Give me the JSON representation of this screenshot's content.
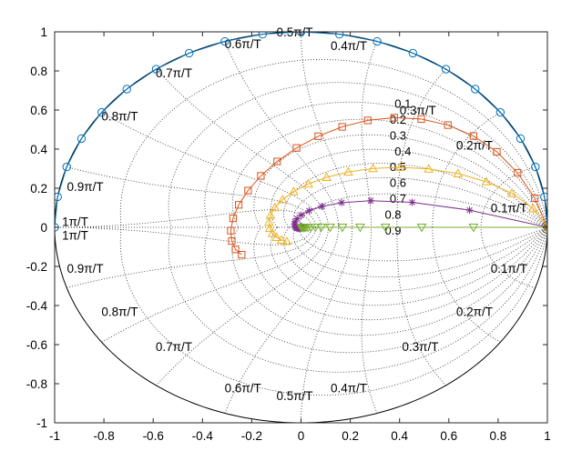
{
  "chart_data": {
    "type": "line",
    "title": "",
    "xlabel": "",
    "ylabel": "",
    "xlim": [
      -1,
      1
    ],
    "ylim": [
      -1,
      1
    ],
    "x_ticks": [
      "-1",
      "-0.8",
      "-0.6",
      "-0.4",
      "-0.2",
      "0",
      "0.2",
      "0.4",
      "0.6",
      "0.8",
      "1"
    ],
    "y_ticks": [
      "1",
      "0.8",
      "0.6",
      "0.4",
      "0.2",
      "0",
      "-0.2",
      "-0.4",
      "-0.6",
      "-0.8",
      "-1"
    ],
    "grid": "z-plane zeta/omega grid (dotted)",
    "legend": "none",
    "zeta_labels": [
      "0.1",
      "0.2",
      "0.3",
      "0.4",
      "0.5",
      "0.6",
      "0.7",
      "0.8",
      "0.9"
    ],
    "wn_labels_upper": [
      "0.1π/T",
      "0.2π/T",
      "0.3π/T",
      "0.4π/T",
      "0.5π/T",
      "0.6π/T",
      "0.7π/T",
      "0.8π/T",
      "0.9π/T",
      "1π/T"
    ],
    "wn_labels_lower": [
      "0.1π/T",
      "0.2π/T",
      "0.3π/T",
      "0.4π/T",
      "0.5π/T",
      "0.6π/T",
      "0.7π/T",
      "0.8π/T",
      "0.9π/T",
      "1π/T"
    ],
    "series": [
      {
        "color": "#0072bd",
        "marker": "circle",
        "x": [
          1.0,
          0.988,
          0.951,
          0.891,
          0.809,
          0.707,
          0.588,
          0.454,
          0.309,
          0.156,
          0.0,
          -0.156,
          -0.309,
          -0.454,
          -0.588,
          -0.707,
          -0.809,
          -0.891,
          -0.951,
          -0.988,
          -1.0
        ],
        "y": [
          0.0,
          0.156,
          0.309,
          0.454,
          0.588,
          0.707,
          0.809,
          0.891,
          0.951,
          0.988,
          1.0,
          0.988,
          0.951,
          0.891,
          0.809,
          0.707,
          0.588,
          0.454,
          0.309,
          0.156,
          0.0
        ]
      },
      {
        "color": "#d95319",
        "marker": "square",
        "x": [
          1.0,
          0.949,
          0.879,
          0.795,
          0.7,
          0.596,
          0.488,
          0.378,
          0.271,
          0.167,
          0.07,
          -0.018,
          -0.097,
          -0.163,
          -0.215,
          -0.253,
          -0.276,
          -0.285,
          -0.281,
          -0.266,
          -0.241
        ],
        "y": [
          0.0,
          0.149,
          0.279,
          0.386,
          0.467,
          0.523,
          0.554,
          0.561,
          0.547,
          0.514,
          0.466,
          0.406,
          0.337,
          0.263,
          0.188,
          0.115,
          0.046,
          -0.017,
          -0.07,
          -0.113,
          -0.14
        ]
      },
      {
        "color": "#edb120",
        "marker": "triangle-up",
        "x": [
          1.0,
          0.942,
          0.856,
          0.752,
          0.637,
          0.518,
          0.402,
          0.292,
          0.192,
          0.104,
          0.03,
          -0.03,
          -0.075,
          -0.106,
          -0.124,
          -0.13,
          -0.127,
          -0.116,
          -0.099,
          -0.079,
          -0.058
        ],
        "y": [
          0.0,
          0.096,
          0.174,
          0.233,
          0.275,
          0.299,
          0.307,
          0.301,
          0.283,
          0.256,
          0.222,
          0.183,
          0.142,
          0.101,
          0.062,
          0.026,
          -0.005,
          -0.031,
          -0.051,
          -0.065,
          -0.072
        ]
      },
      {
        "color": "#7e2f8e",
        "marker": "asterisk",
        "x": [
          1.0,
          0.684,
          0.451,
          0.283,
          0.165,
          0.085,
          0.033,
          0.001,
          -0.016,
          -0.024,
          -0.026,
          -0.025,
          -0.022,
          -0.018,
          -0.014,
          -0.01,
          -0.007,
          -0.005,
          -0.003,
          -0.002,
          -0.001
        ],
        "y": [
          0.0,
          0.088,
          0.128,
          0.136,
          0.126,
          0.107,
          0.085,
          0.063,
          0.044,
          0.028,
          0.016,
          0.007,
          0.001,
          -0.003,
          -0.005,
          -0.005,
          -0.005,
          -0.004,
          -0.003,
          -0.002,
          -0.002
        ],
        "dense_tail": true
      },
      {
        "color": "#77ac30",
        "marker": "triangle-down",
        "x": [
          1.0,
          0.7,
          0.49,
          0.343,
          0.24,
          0.168,
          0.118,
          0.082,
          0.058,
          0.04,
          0.028,
          0.02,
          0.014,
          0.01,
          0.007,
          0.005,
          0.003,
          0.002,
          0.002,
          0.001,
          0.001
        ],
        "y": [
          0,
          0,
          0,
          0,
          0,
          0,
          0,
          0,
          0,
          0,
          0,
          0,
          0,
          0,
          0,
          0,
          0,
          0,
          0,
          0,
          0
        ]
      }
    ]
  }
}
